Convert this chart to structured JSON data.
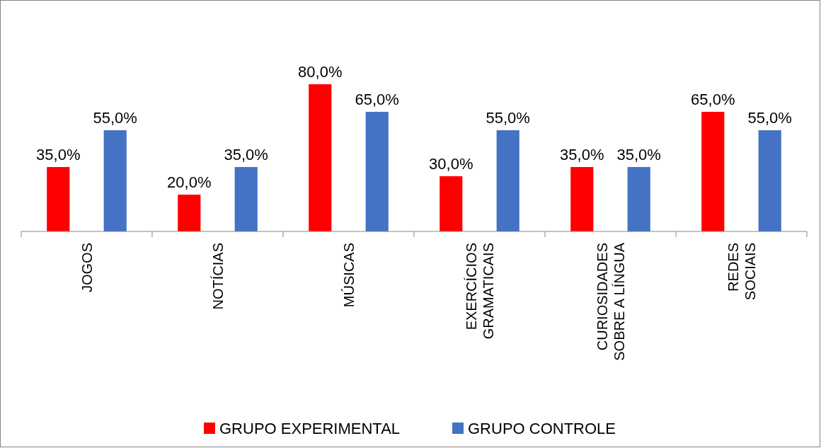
{
  "chart_data": {
    "type": "bar",
    "categories": [
      "JOGOS",
      "NOTÍCIAS",
      "MÚSICAS",
      "EXERCÍCIOS\nGRAMATICAIS",
      "CURIOSIDADES\nSOBRE A LÍNGUA",
      "REDES\nSOCIAIS"
    ],
    "series": [
      {
        "name": "GRUPO EXPERIMENTAL",
        "color": "#ff0000",
        "values": [
          35,
          20,
          80,
          30,
          35,
          65
        ],
        "value_labels": [
          "35,0%",
          "20,0%",
          "80,0%",
          "30,0%",
          "35,0%",
          "65,0%"
        ]
      },
      {
        "name": "GRUPO CONTROLE",
        "color": "#4472c4",
        "values": [
          55,
          35,
          65,
          55,
          35,
          55
        ],
        "value_labels": [
          "55,0%",
          "35,0%",
          "65,0%",
          "55,0%",
          "35,0%",
          "55,0%"
        ]
      }
    ],
    "legend": "bottom"
  }
}
